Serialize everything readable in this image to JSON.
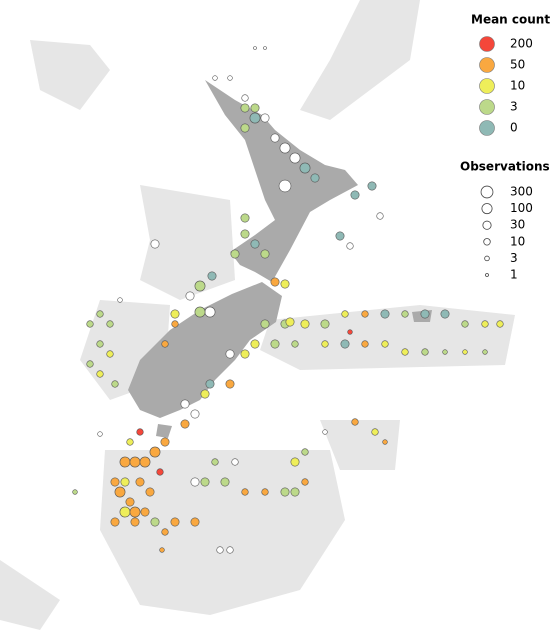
{
  "legend_mean": {
    "title": "Mean count",
    "values": [
      200,
      50,
      10,
      3,
      0
    ],
    "colors": [
      "#f4473a",
      "#f9a840",
      "#eeee5a",
      "#bcd98a",
      "#8fb9b5"
    ]
  },
  "legend_obs": {
    "title": "Observations",
    "values": [
      300,
      100,
      30,
      10,
      3,
      1
    ]
  },
  "map": {
    "xlim": [
      165,
      187.4
    ],
    "ylim": [
      -52.2,
      -33
    ],
    "lon": [
      175.2,
      175.6,
      173.6,
      174.2,
      174.8,
      175.2,
      174.8,
      175.6,
      175.2,
      174.8,
      176.0,
      176.4,
      176.8,
      177.2,
      177.6,
      176.4,
      174.8,
      174.8,
      175.2,
      174.4,
      175.6,
      173.48,
      173.0,
      172.6,
      173.4,
      173.0,
      171.2,
      179.88,
      179.2,
      178.6,
      180.2,
      179.0,
      175.6,
      176.4,
      177.2,
      178.0,
      178.8,
      179.6,
      180.4,
      181.2,
      182.0,
      182.8,
      183.6,
      184.4,
      185.0,
      175.2,
      176.0,
      176.8,
      178.0,
      178.8,
      179.6,
      180.4,
      181.2,
      182.0,
      182.8,
      183.6,
      184.4,
      174.2,
      174.8,
      169.0,
      169.4,
      168.6,
      169.0,
      169.4,
      168.6,
      169.0,
      169.6,
      169.8,
      172.0,
      172.0,
      171.6,
      173.4,
      174.2,
      172.4,
      173.2,
      172.8,
      172.4,
      171.6,
      170.2,
      169.0,
      170.0,
      170.4,
      170.8,
      171.2,
      169.6,
      170.0,
      170.6,
      171.0,
      169.8,
      170.2,
      170.0,
      170.4,
      170.8,
      169.6,
      170.4,
      171.2,
      172.0,
      172.8,
      171.6,
      171.48,
      168.0,
      173.8,
      174.2,
      173.6,
      174.4,
      172.8,
      173.2,
      174.0,
      174.8,
      175.6,
      176.4,
      176.8,
      177.2,
      176.8,
      177.2,
      179.2,
      180.0,
      180.4,
      178.0,
      176.0,
      176.4,
      176.6,
      170.6,
      171.4,
      179.0
    ],
    "lat": [
      -34.44,
      -34.44,
      -35.34,
      -35.34,
      -35.94,
      -36.24,
      -36.24,
      -36.54,
      -36.54,
      -36.84,
      -37.14,
      -37.44,
      -37.74,
      -38.04,
      -38.34,
      -38.58,
      -39.54,
      -40.02,
      -40.32,
      -40.62,
      -40.62,
      -41.28,
      -41.58,
      -41.88,
      -42.36,
      -42.36,
      -40.32,
      -38.58,
      -38.85,
      -40.08,
      -39.48,
      -40.38,
      -42.72,
      -42.72,
      -42.72,
      -42.72,
      -42.42,
      -42.42,
      -42.42,
      -42.42,
      -42.42,
      -42.42,
      -42.72,
      -42.72,
      -42.72,
      -43.32,
      -43.32,
      -43.32,
      -43.32,
      -43.32,
      -43.32,
      -43.32,
      -43.56,
      -43.56,
      -43.56,
      -43.56,
      -43.56,
      -43.62,
      -43.62,
      -42.42,
      -42.72,
      -42.72,
      -43.32,
      -43.62,
      -43.92,
      -44.22,
      -44.52,
      -42.0,
      -42.42,
      -42.72,
      -43.32,
      -44.52,
      -44.52,
      -45.12,
      -44.82,
      -45.42,
      -45.72,
      -46.26,
      -46.26,
      -46.02,
      -46.86,
      -46.86,
      -46.86,
      -46.56,
      -47.46,
      -47.46,
      -47.46,
      -47.76,
      -47.76,
      -48.06,
      -48.36,
      -48.36,
      -48.36,
      -48.66,
      -48.66,
      -48.66,
      -48.66,
      -48.66,
      -48.96,
      -49.5,
      -47.76,
      -49.5,
      -49.5,
      -46.86,
      -46.86,
      -47.46,
      -47.46,
      -47.46,
      -47.76,
      -47.76,
      -47.76,
      -47.76,
      -47.46,
      -46.86,
      -46.56,
      -45.66,
      -45.96,
      -46.26,
      -45.96,
      -41.46,
      -41.52,
      -42.66,
      -45.96,
      -47.16,
      -42.96
    ],
    "mean": [
      null,
      null,
      null,
      null,
      null,
      3,
      3,
      null,
      0,
      3,
      null,
      null,
      null,
      0,
      0,
      null,
      3,
      3,
      0,
      3,
      3,
      0,
      3,
      null,
      null,
      3,
      null,
      0,
      0,
      0,
      null,
      null,
      3,
      3,
      10,
      3,
      10,
      50,
      0,
      3,
      0,
      0,
      3,
      10,
      10,
      10,
      3,
      3,
      10,
      0,
      50,
      10,
      10,
      3,
      3,
      10,
      3,
      null,
      10,
      3,
      3,
      3,
      3,
      10,
      3,
      10,
      3,
      null,
      10,
      50,
      50,
      0,
      50,
      null,
      10,
      null,
      50,
      50,
      10,
      null,
      50,
      50,
      50,
      50,
      50,
      10,
      50,
      50,
      50,
      50,
      10,
      50,
      50,
      50,
      50,
      3,
      50,
      50,
      50,
      50,
      3,
      null,
      null,
      3,
      null,
      null,
      3,
      3,
      50,
      50,
      3,
      3,
      50,
      10,
      3,
      50,
      10,
      50,
      null,
      50,
      10,
      10,
      200,
      200,
      200
    ],
    "obs": [
      1,
      1,
      3,
      3,
      10,
      30,
      30,
      30,
      100,
      30,
      30,
      100,
      100,
      100,
      30,
      300,
      30,
      30,
      30,
      30,
      30,
      30,
      100,
      30,
      100,
      100,
      30,
      30,
      30,
      30,
      10,
      10,
      30,
      30,
      30,
      30,
      10,
      10,
      30,
      10,
      30,
      30,
      10,
      10,
      10,
      30,
      30,
      10,
      10,
      30,
      10,
      10,
      10,
      10,
      3,
      3,
      3,
      30,
      30,
      10,
      10,
      10,
      10,
      10,
      10,
      10,
      10,
      3,
      30,
      10,
      10,
      30,
      30,
      30,
      30,
      30,
      30,
      30,
      10,
      3,
      100,
      100,
      100,
      100,
      30,
      30,
      30,
      30,
      100,
      30,
      100,
      100,
      30,
      30,
      30,
      30,
      30,
      30,
      10,
      3,
      3,
      10,
      10,
      10,
      10,
      30,
      30,
      30,
      10,
      10,
      30,
      30,
      10,
      30,
      10,
      10,
      10,
      3,
      3,
      30,
      30,
      30,
      10,
      10,
      3
    ]
  }
}
